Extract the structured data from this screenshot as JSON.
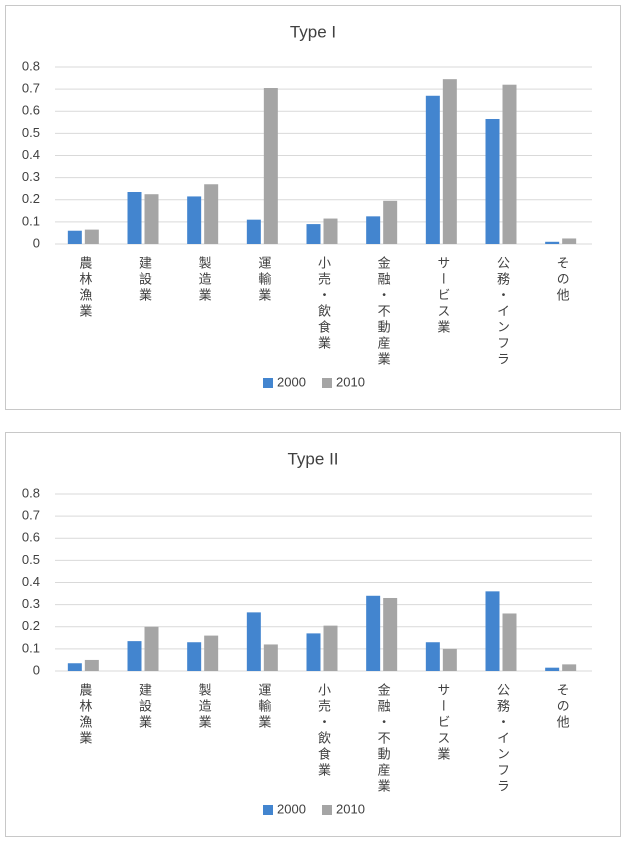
{
  "chart_data": [
    {
      "type": "bar",
      "title": "Type I",
      "categories": [
        "農林漁業",
        "建設業",
        "製造業",
        "運輸業",
        "小売・飲食業",
        "金融・不動産業",
        "サービス業",
        "公務・インフラ",
        "その他"
      ],
      "series": [
        {
          "name": "2000",
          "color": "#4385cf",
          "values": [
            0.06,
            0.235,
            0.215,
            0.11,
            0.09,
            0.125,
            0.67,
            0.565,
            0.01
          ]
        },
        {
          "name": "2010",
          "color": "#a5a5a5",
          "values": [
            0.065,
            0.225,
            0.27,
            0.705,
            0.115,
            0.195,
            0.745,
            0.72,
            0.025
          ]
        }
      ],
      "ylim": [
        0,
        0.8
      ],
      "yticks": [
        0,
        0.1,
        0.2,
        0.3,
        0.4,
        0.5,
        0.6,
        0.7,
        0.8
      ],
      "grid": true
    },
    {
      "type": "bar",
      "title": "Type II",
      "categories": [
        "農林漁業",
        "建設業",
        "製造業",
        "運輸業",
        "小売・飲食業",
        "金融・不動産業",
        "サービス業",
        "公務・インフラ",
        "その他"
      ],
      "series": [
        {
          "name": "2000",
          "color": "#4385cf",
          "values": [
            0.035,
            0.135,
            0.13,
            0.265,
            0.17,
            0.34,
            0.13,
            0.36,
            0.015
          ]
        },
        {
          "name": "2010",
          "color": "#a5a5a5",
          "values": [
            0.05,
            0.2,
            0.16,
            0.12,
            0.205,
            0.33,
            0.1,
            0.26,
            0.03
          ]
        }
      ],
      "ylim": [
        0,
        0.8
      ],
      "yticks": [
        0,
        0.1,
        0.2,
        0.3,
        0.4,
        0.5,
        0.6,
        0.7,
        0.8
      ],
      "grid": true
    }
  ]
}
